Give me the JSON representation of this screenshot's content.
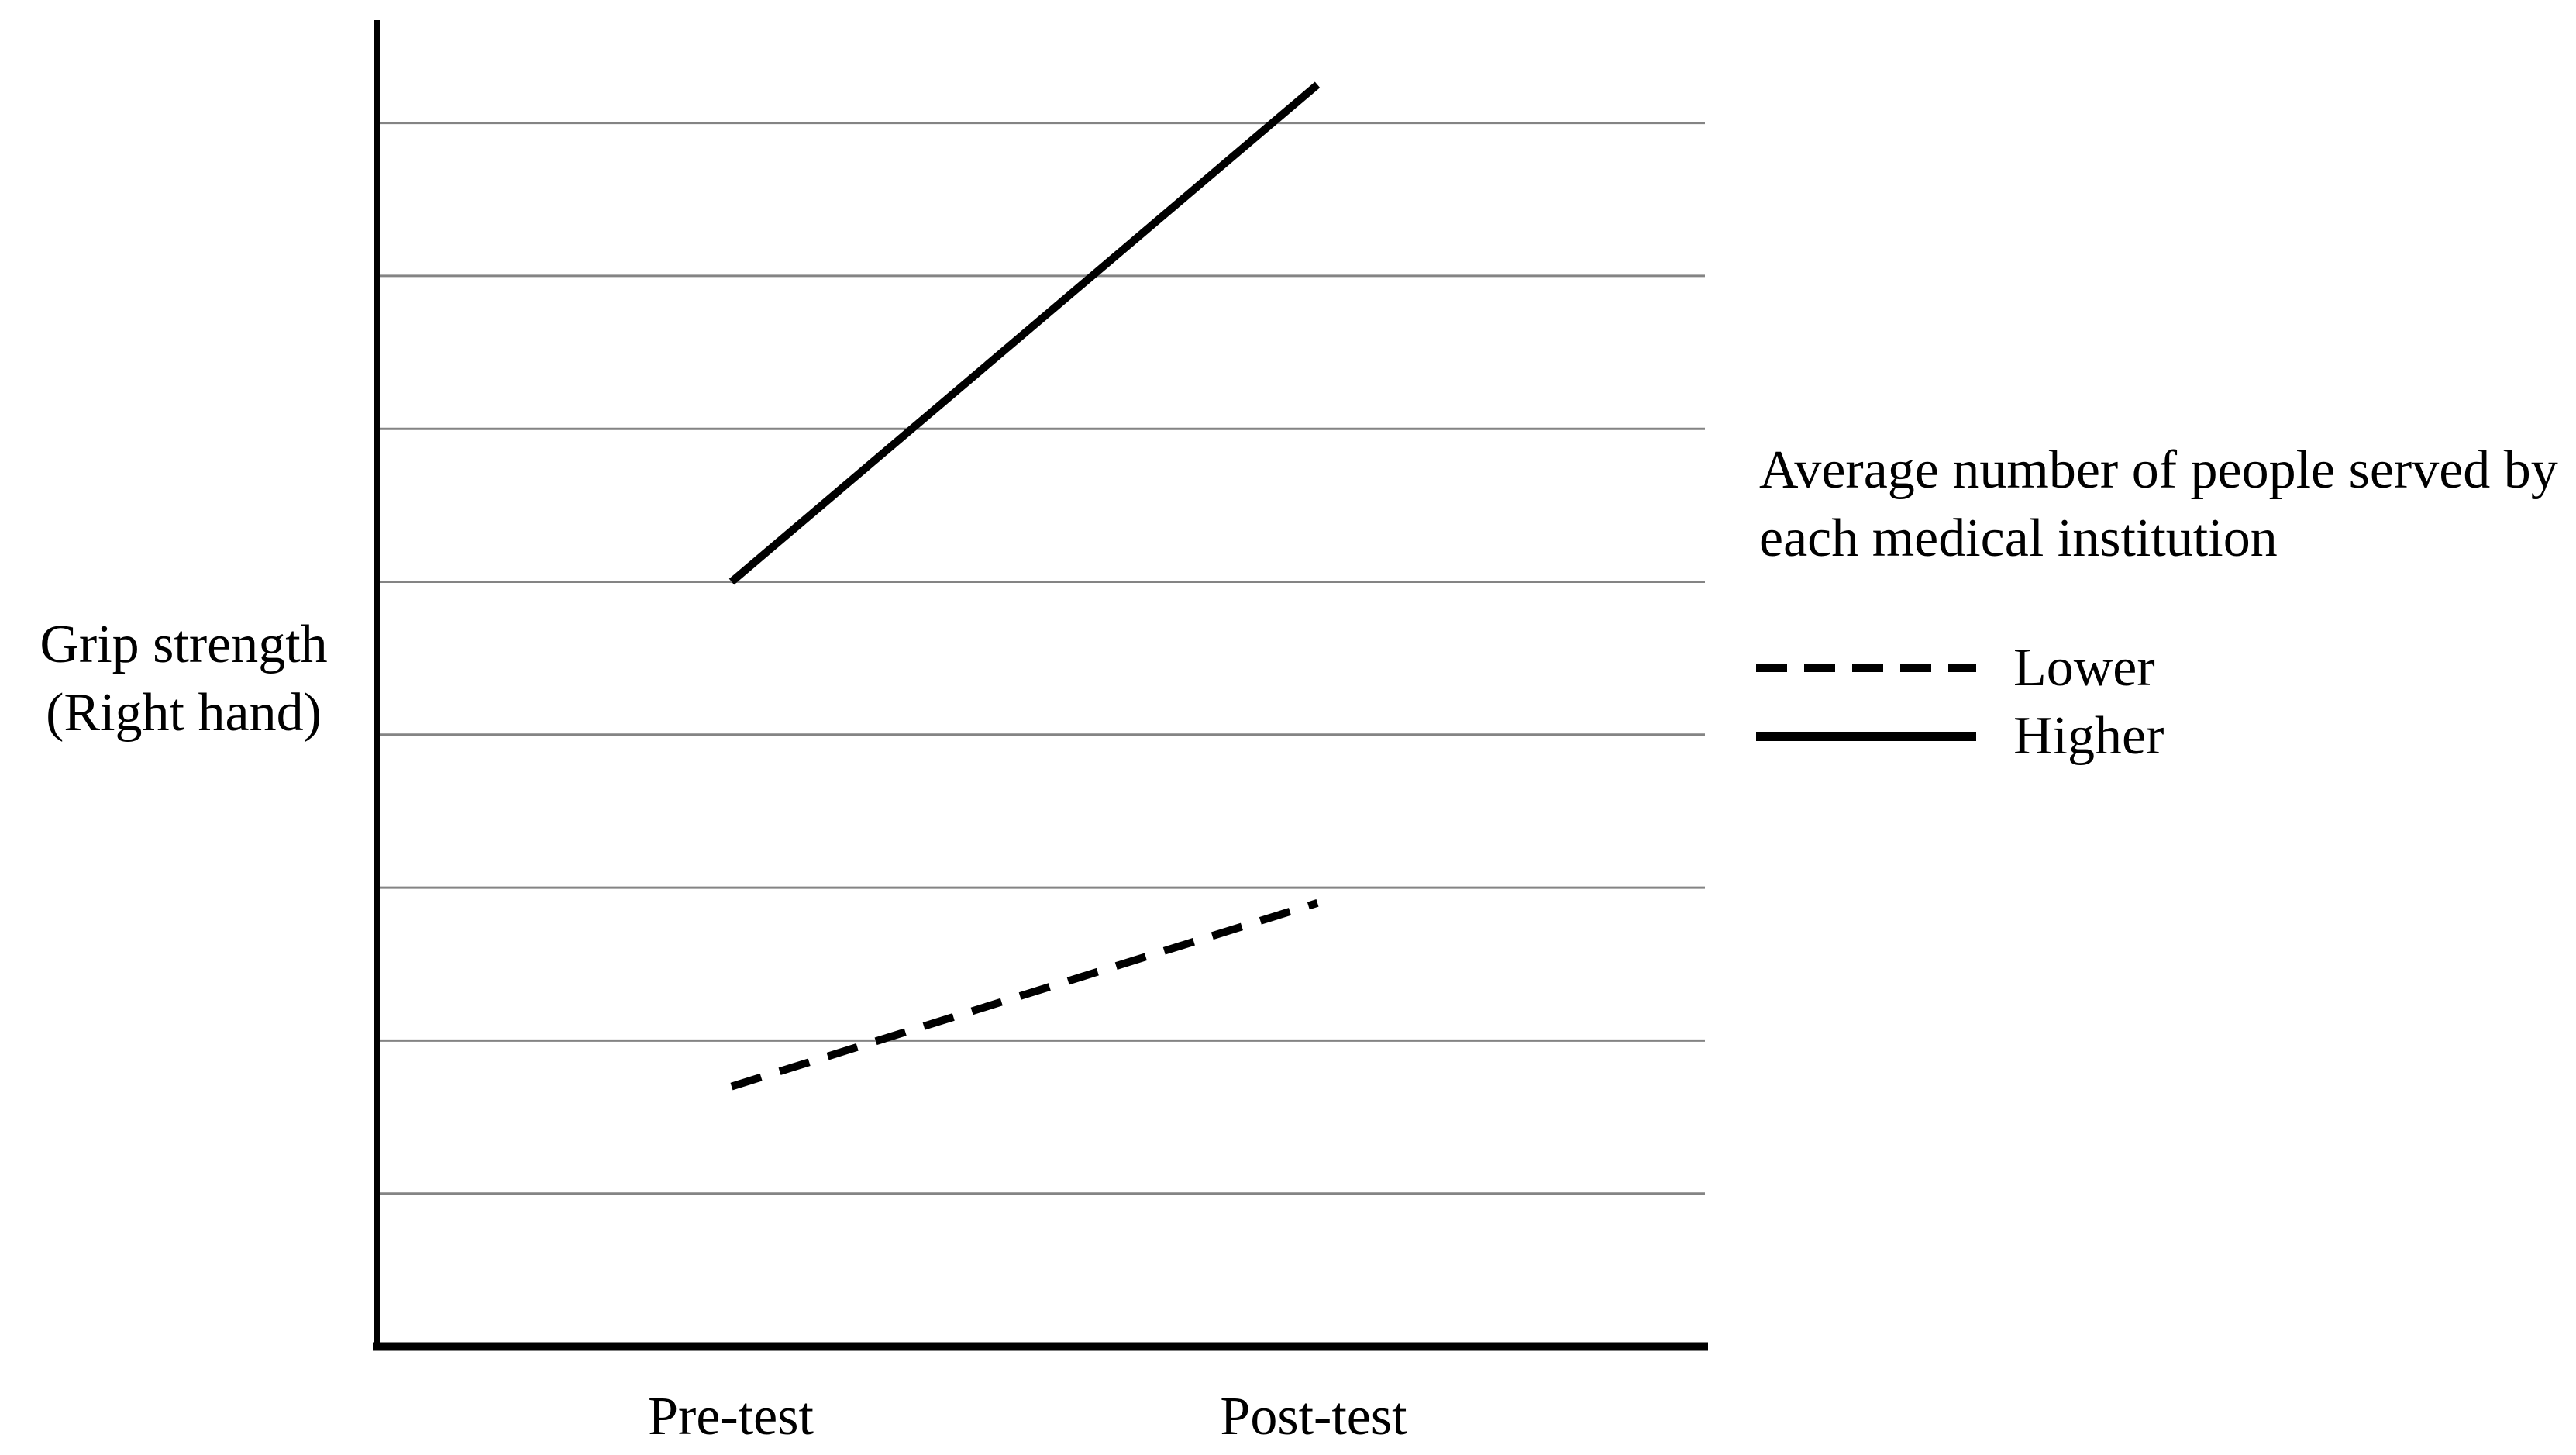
{
  "figure": {
    "y_axis_label_lines": [
      "Grip strength",
      "(Right hand)"
    ],
    "x_axis_labels": [
      "Pre-test",
      "Post-test"
    ]
  },
  "legend": {
    "title_lines": [
      "Average number of people served by",
      "each medical institution"
    ],
    "items": [
      {
        "label": "Lower",
        "line_style": "dashed"
      },
      {
        "label": "Higher",
        "line_style": "solid"
      }
    ]
  },
  "chart_data": {
    "type": "line",
    "title": "",
    "categories": [
      "Pre-test",
      "Post-test"
    ],
    "series": [
      {
        "name": "Lower",
        "line_style": "dashed",
        "color": "#000000",
        "values": [
          1.7,
          2.9
        ]
      },
      {
        "name": "Higher",
        "line_style": "solid",
        "color": "#000000",
        "values": [
          5.0,
          8.25
        ]
      }
    ],
    "xlabel": "",
    "ylabel": "Grip strength (Right hand)",
    "ylim": [
      0,
      8.8
    ],
    "yticks_labeled": false,
    "y_values_note": "arbitrary units; figure shows no numeric tick labels, values estimated from gridlines (1 unit per gridline)",
    "gridlines": {
      "horizontal": true,
      "values": [
        1,
        2,
        3,
        4,
        5,
        6,
        7,
        8
      ],
      "color": "#848484"
    },
    "legend_title": "Average number of people served by each medical institution",
    "legend_position": "right-center",
    "axis_color": "#000000",
    "background": "#ffffff"
  }
}
